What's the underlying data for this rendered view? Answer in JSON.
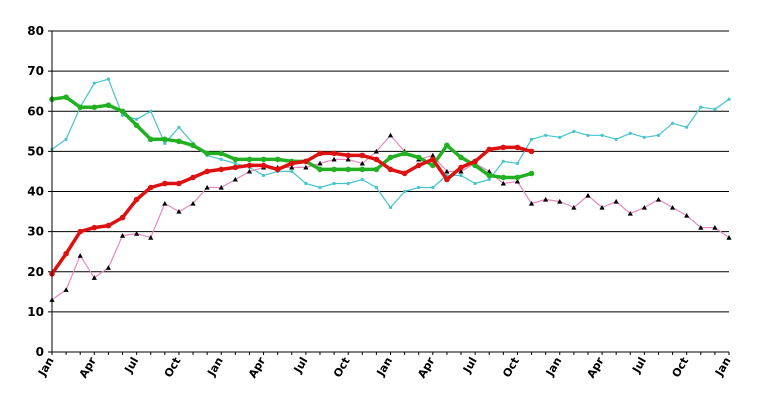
{
  "chart_data": {
    "type": "line",
    "title": "",
    "xlabel": "",
    "ylabel": "",
    "ylim": [
      0,
      80
    ],
    "y_ticks": [
      0,
      10,
      20,
      30,
      40,
      50,
      60,
      70,
      80
    ],
    "x_range": [
      0,
      48
    ],
    "x_ticks": [
      {
        "x": 0,
        "label": "Jan"
      },
      {
        "x": 3,
        "label": "Apr"
      },
      {
        "x": 6,
        "label": "Jul"
      },
      {
        "x": 9,
        "label": "Oct"
      },
      {
        "x": 12,
        "label": "Jan"
      },
      {
        "x": 15,
        "label": "Apr"
      },
      {
        "x": 18,
        "label": "Jul"
      },
      {
        "x": 21,
        "label": "Oct"
      },
      {
        "x": 24,
        "label": "Jan"
      },
      {
        "x": 27,
        "label": "Apr"
      },
      {
        "x": 30,
        "label": "Jul"
      },
      {
        "x": 33,
        "label": "Oct"
      },
      {
        "x": 36,
        "label": "Jan"
      },
      {
        "x": 39,
        "label": "Apr"
      },
      {
        "x": 42,
        "label": "Jul"
      },
      {
        "x": 45,
        "label": "Oct"
      },
      {
        "x": 48,
        "label": "Jan"
      }
    ],
    "grid": "horizontal",
    "legend": "none",
    "series": [
      {
        "color": "#46c4cc",
        "width": 1.2,
        "marker": "dot",
        "x": [
          0,
          1,
          2,
          3,
          4,
          5,
          6,
          7,
          8,
          9,
          10,
          11,
          12,
          13,
          14,
          15,
          16,
          17,
          18,
          19,
          20,
          21,
          22,
          23,
          24,
          25,
          26,
          27,
          28,
          29,
          30,
          31,
          32,
          33,
          34,
          35,
          36,
          37,
          38,
          39,
          40,
          41,
          42,
          43,
          44,
          45,
          46,
          47,
          48
        ],
        "y": [
          50.5,
          53,
          61,
          67,
          68,
          59,
          58,
          60,
          52,
          56,
          52,
          49,
          48,
          47,
          46,
          44,
          45,
          45,
          42,
          41,
          42,
          42,
          43,
          41,
          36,
          40,
          41,
          41,
          44,
          44,
          42,
          43,
          47.5,
          47,
          53,
          54,
          53.5,
          55,
          54,
          54,
          53,
          54.5,
          53.5,
          54,
          57,
          56,
          61,
          60.5,
          63
        ]
      },
      {
        "color": "#e888c0",
        "width": 1.2,
        "marker": "triangle",
        "marker_color": "#000000",
        "x": [
          0,
          1,
          2,
          3,
          4,
          5,
          6,
          7,
          8,
          9,
          10,
          11,
          12,
          13,
          14,
          15,
          16,
          17,
          18,
          19,
          20,
          21,
          22,
          23,
          24,
          25,
          26,
          27,
          28,
          29,
          30,
          31,
          32,
          33,
          34,
          35,
          36,
          37,
          38,
          39,
          40,
          41,
          42,
          43,
          44,
          45,
          46,
          47,
          48
        ],
        "y": [
          13,
          15.5,
          24,
          18.5,
          21,
          29,
          29.5,
          28.5,
          37,
          35,
          37,
          41,
          41,
          43,
          45,
          46,
          46,
          46,
          46,
          47,
          48,
          48,
          47,
          50,
          54,
          50,
          48,
          49,
          45,
          45,
          47,
          45,
          42,
          42.5,
          37,
          38,
          37.5,
          36,
          39,
          36,
          37.5,
          34.5,
          36,
          38,
          36,
          34,
          31,
          31,
          28.5
        ]
      },
      {
        "color": "#22b022",
        "width": 3.5,
        "marker": "dot",
        "x": [
          0,
          1,
          2,
          3,
          4,
          5,
          6,
          7,
          8,
          9,
          10,
          11,
          12,
          13,
          14,
          15,
          16,
          17,
          18,
          19,
          20,
          21,
          22,
          23,
          24,
          25,
          26,
          27,
          28,
          29,
          30,
          31,
          32,
          33,
          34
        ],
        "y": [
          63,
          63.5,
          61,
          61,
          61.5,
          60,
          56.5,
          53,
          53,
          52.5,
          51.5,
          49.5,
          49.5,
          48,
          48,
          48,
          48,
          47.5,
          47.5,
          45.5,
          45.5,
          45.5,
          45.5,
          45.5,
          48.5,
          49.5,
          48.5,
          46.5,
          51.5,
          48.5,
          46.5,
          44,
          43.5,
          43.5,
          44.5
        ]
      },
      {
        "color": "#dd1111",
        "width": 3.5,
        "marker": "dot",
        "x": [
          0,
          1,
          2,
          3,
          4,
          5,
          6,
          7,
          8,
          9,
          10,
          11,
          12,
          13,
          14,
          15,
          16,
          17,
          18,
          19,
          20,
          21,
          22,
          23,
          24,
          25,
          26,
          27,
          28,
          29,
          30,
          31,
          32,
          33,
          34
        ],
        "y": [
          19.5,
          24.5,
          30,
          31,
          31.5,
          33.5,
          38,
          41,
          42,
          42,
          43.5,
          45,
          45.5,
          46,
          46.5,
          46.5,
          45.5,
          47,
          47.5,
          49.5,
          49.5,
          49,
          49,
          48,
          45.5,
          44.5,
          46.5,
          48,
          43,
          46,
          47.5,
          50.5,
          51,
          51,
          50
        ]
      }
    ]
  }
}
